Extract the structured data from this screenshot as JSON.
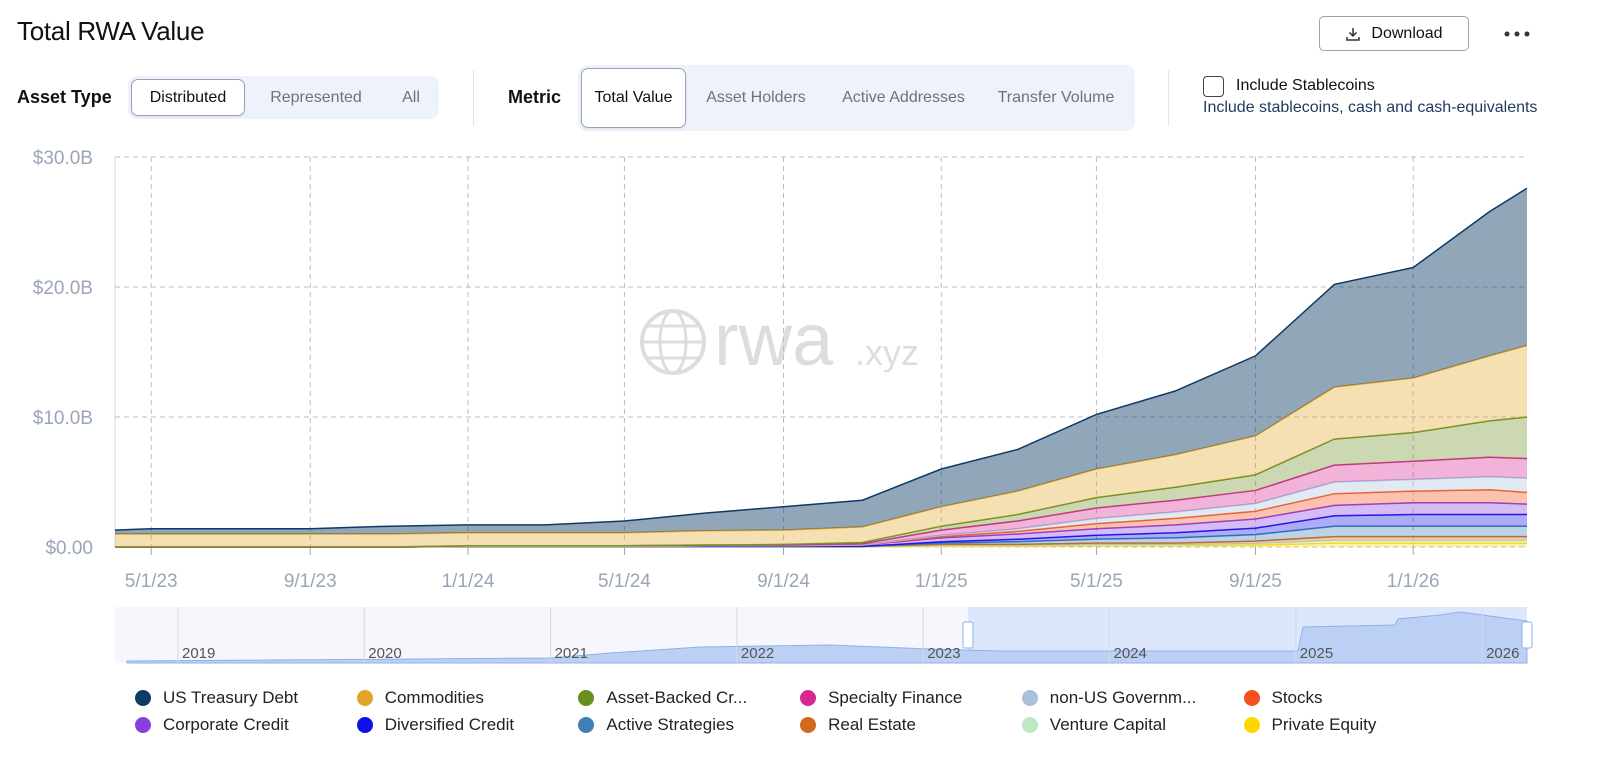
{
  "header": {
    "title": "Total RWA Value",
    "download": "Download"
  },
  "filters": {
    "asset_type": {
      "label": "Asset Type",
      "options": [
        "Distributed",
        "Represented",
        "All"
      ],
      "selected_index": 0
    },
    "metric": {
      "label": "Metric",
      "options": [
        "Total Value",
        "Asset Holders",
        "Active Addresses",
        "Transfer Volume"
      ],
      "selected_index": 0
    },
    "stablecoins": {
      "label": "Include Stablecoins",
      "description": "Include stablecoins, cash and cash-equivalents",
      "checked": false
    }
  },
  "watermark": {
    "main": "rwa",
    "suffix": ".xyz"
  },
  "navigator": {
    "labels": [
      "2019",
      "2020",
      "2021",
      "2022",
      "2023",
      "2024",
      "2025",
      "2026"
    ]
  },
  "chart_data": {
    "type": "area",
    "stacked": true,
    "grid": true,
    "legend": "bottom",
    "x": [
      "4/3/23",
      "5/1/23",
      "7/1/23",
      "9/1/23",
      "11/1/23",
      "1/1/24",
      "3/1/24",
      "5/1/24",
      "7/1/24",
      "9/1/24",
      "11/1/24",
      "1/1/25",
      "3/1/25",
      "5/1/25",
      "7/1/25",
      "9/1/25",
      "11/1/25",
      "1/1/26",
      "3/1/26",
      "3/30/26"
    ],
    "xlim": [
      "4/3/23",
      "3/30/26"
    ],
    "xticks": [
      "5/1/23",
      "9/1/23",
      "1/1/24",
      "5/1/24",
      "9/1/24",
      "1/1/25",
      "5/1/25",
      "9/1/25",
      "1/1/26"
    ],
    "ylim": [
      0,
      30
    ],
    "yticks": [
      {
        "value": 0,
        "label": "$0.00"
      },
      {
        "value": 10,
        "label": "$10.0B"
      },
      {
        "value": 20,
        "label": "$20.0B"
      },
      {
        "value": 30,
        "label": "$30.0B"
      }
    ],
    "series": [
      {
        "name": "US Treasury Debt",
        "color": "#0e3a66",
        "values": [
          0.3,
          0.4,
          0.4,
          0.4,
          0.6,
          0.6,
          0.6,
          0.9,
          1.35,
          1.8,
          2.05,
          2.9,
          3.2,
          4.2,
          4.9,
          6.15,
          7.9,
          8.5,
          11.1,
          12.1
        ]
      },
      {
        "name": "Commodities",
        "color": "#e0a526",
        "values": [
          1.0,
          1.0,
          1.0,
          1.0,
          1.0,
          1.0,
          1.0,
          1.0,
          1.1,
          1.1,
          1.2,
          1.5,
          1.8,
          2.2,
          2.5,
          3.0,
          4.0,
          4.2,
          5.0,
          5.5
        ]
      },
      {
        "name": "Asset-Backed Cr...",
        "color": "#6b8e23",
        "values": [
          0,
          0,
          0,
          0,
          0,
          0,
          0,
          0,
          0,
          0.05,
          0.1,
          0.3,
          0.5,
          0.8,
          1.0,
          1.2,
          2.0,
          2.2,
          2.8,
          3.2
        ]
      },
      {
        "name": "Specialty Finance",
        "color": "#d6288f",
        "values": [
          0,
          0,
          0,
          0,
          0,
          0.05,
          0.05,
          0.05,
          0.05,
          0.05,
          0.1,
          0.4,
          0.6,
          0.8,
          0.9,
          1.0,
          1.3,
          1.4,
          1.5,
          1.5
        ]
      },
      {
        "name": "non-US Governm...",
        "color": "#a9bfdc",
        "values": [
          0,
          0,
          0,
          0,
          0,
          0,
          0,
          0,
          0,
          0,
          0,
          0.1,
          0.2,
          0.4,
          0.5,
          0.6,
          0.9,
          0.9,
          1.0,
          1.1
        ]
      },
      {
        "name": "Stocks",
        "color": "#f4511e",
        "values": [
          0,
          0,
          0,
          0,
          0,
          0,
          0,
          0,
          0,
          0,
          0,
          0.1,
          0.2,
          0.4,
          0.5,
          0.6,
          0.9,
          0.9,
          1.0,
          0.9
        ]
      },
      {
        "name": "Corporate Credit",
        "color": "#8a3ee0",
        "values": [
          0,
          0,
          0,
          0,
          0,
          0,
          0,
          0,
          0.05,
          0.05,
          0.1,
          0.3,
          0.4,
          0.5,
          0.6,
          0.7,
          0.8,
          0.9,
          0.9,
          0.8
        ]
      },
      {
        "name": "Diversified Credit",
        "color": "#1010e8",
        "values": [
          0,
          0,
          0,
          0,
          0,
          0,
          0,
          0,
          0,
          0,
          0,
          0.1,
          0.2,
          0.3,
          0.4,
          0.5,
          0.8,
          0.9,
          0.9,
          0.9
        ]
      },
      {
        "name": "Active Strategies",
        "color": "#3f7fb5",
        "values": [
          0,
          0,
          0,
          0,
          0,
          0,
          0,
          0,
          0,
          0,
          0,
          0.1,
          0.2,
          0.3,
          0.4,
          0.5,
          0.8,
          0.8,
          0.8,
          0.8
        ]
      },
      {
        "name": "Real Estate",
        "color": "#d2691e",
        "values": [
          0,
          0,
          0,
          0,
          0,
          0.05,
          0.05,
          0.05,
          0.05,
          0.05,
          0.05,
          0.1,
          0.1,
          0.15,
          0.15,
          0.2,
          0.3,
          0.3,
          0.3,
          0.3
        ]
      },
      {
        "name": "Venture Capital",
        "color": "#bde8c0",
        "values": [
          0,
          0,
          0,
          0,
          0,
          0,
          0,
          0,
          0,
          0,
          0,
          0.05,
          0.05,
          0.05,
          0.05,
          0.1,
          0.2,
          0.2,
          0.2,
          0.2
        ]
      },
      {
        "name": "Private Equity",
        "color": "#ffd600",
        "values": [
          0,
          0,
          0,
          0,
          0,
          0,
          0,
          0,
          0,
          0,
          0,
          0.05,
          0.05,
          0.1,
          0.1,
          0.15,
          0.3,
          0.3,
          0.3,
          0.3
        ]
      }
    ]
  }
}
